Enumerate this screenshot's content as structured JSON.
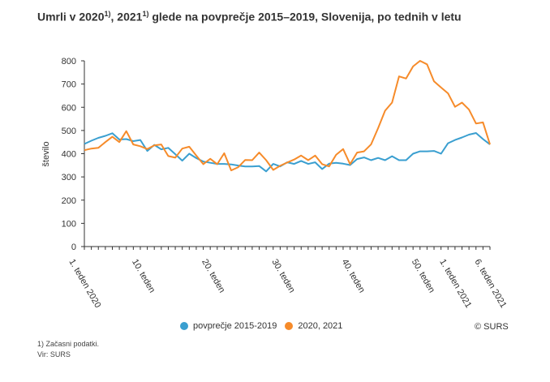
{
  "title": {
    "part1": "Umrli v 2020",
    "sup1": "1)",
    "part2": ", 2021",
    "sup2": "1)",
    "part3": " glede na povprečje 2015–2019, Slovenija, po tednih v letu"
  },
  "chart_data": {
    "type": "line",
    "ylabel": "število",
    "ylim": [
      0,
      800
    ],
    "yticks": [
      0,
      100,
      200,
      300,
      400,
      500,
      600,
      700,
      800
    ],
    "n_points": 59,
    "x_tick_labels": [
      {
        "index": 0,
        "label": "1. teden 2020"
      },
      {
        "index": 9,
        "label": "10. teden"
      },
      {
        "index": 19,
        "label": "20. teden"
      },
      {
        "index": 29,
        "label": "30. teden"
      },
      {
        "index": 39,
        "label": "40. teden"
      },
      {
        "index": 49,
        "label": "50. teden"
      },
      {
        "index": 53,
        "label": "1. teden 2021"
      },
      {
        "index": 58,
        "label": "6. teden 2021"
      }
    ],
    "series": [
      {
        "name": "povprečje 2015-2019",
        "color": "#3a9fd0",
        "values": [
          442,
          456,
          468,
          477,
          488,
          461,
          463,
          454,
          459,
          412,
          438,
          419,
          425,
          398,
          370,
          400,
          381,
          366,
          361,
          356,
          356,
          354,
          349,
          345,
          345,
          347,
          324,
          356,
          345,
          363,
          356,
          369,
          356,
          363,
          334,
          357,
          361,
          357,
          351,
          377,
          384,
          372,
          382,
          372,
          389,
          372,
          372,
          400,
          410,
          410,
          412,
          400,
          445,
          459,
          470,
          482,
          489,
          463,
          440
        ]
      },
      {
        "name": "2020, 2021",
        "color": "#f68b2a",
        "values": [
          415,
          422,
          425,
          450,
          473,
          450,
          497,
          440,
          432,
          420,
          436,
          440,
          390,
          383,
          422,
          430,
          392,
          355,
          378,
          355,
          402,
          328,
          342,
          373,
          372,
          405,
          372,
          330,
          348,
          362,
          375,
          392,
          372,
          392,
          355,
          345,
          395,
          420,
          355,
          405,
          410,
          440,
          510,
          585,
          620,
          733,
          724,
          776,
          800,
          785,
          712,
          685,
          660,
          602,
          620,
          590,
          530,
          535,
          440
        ]
      }
    ]
  },
  "legend": {
    "items": [
      "povprečje 2015-2019",
      "2020, 2021"
    ]
  },
  "copyright": "© SURS",
  "footnotes": {
    "note": "1) Začasni podatki.",
    "source": "Vir: SURS"
  }
}
